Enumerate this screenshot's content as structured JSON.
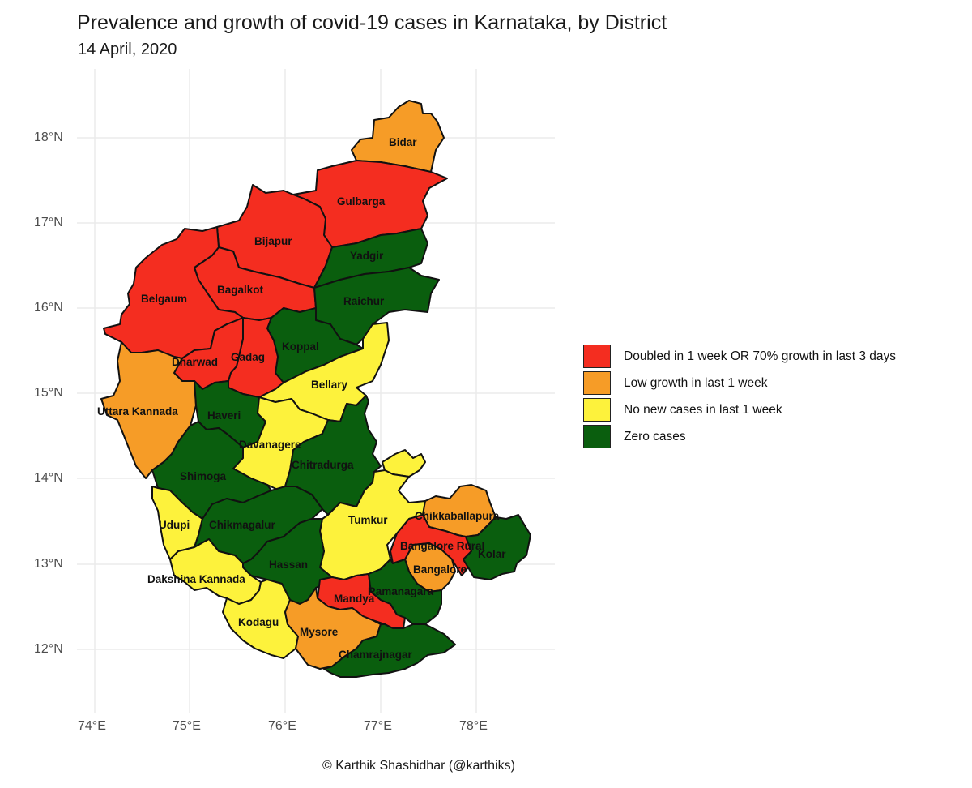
{
  "title": "Prevalence and growth of covid-19 cases in Karnataka, by District",
  "subtitle": "14 April, 2020",
  "caption": "© Karthik Shashidhar (@karthiks)",
  "axes": {
    "y_ticks": [
      "18°N",
      "17°N",
      "16°N",
      "15°N",
      "14°N",
      "13°N",
      "12°N"
    ],
    "x_ticks": [
      "74°E",
      "75°E",
      "76°E",
      "77°E",
      "78°E"
    ]
  },
  "colors": {
    "doubled": "#f42d20",
    "low_growth": "#f69c27",
    "no_new": "#fdf23c",
    "zero": "#0a5e0e",
    "grid": "#ebebeb",
    "border": "#111111"
  },
  "legend": [
    {
      "key": "doubled",
      "label": "Doubled in 1 week OR 70% growth in last 3 days"
    },
    {
      "key": "low_growth",
      "label": "Low growth in last 1 week"
    },
    {
      "key": "no_new",
      "label": "No new cases in last 1 week"
    },
    {
      "key": "zero",
      "label": "Zero cases"
    }
  ],
  "districts": [
    {
      "name": "Bidar",
      "category": "low_growth"
    },
    {
      "name": "Gulbarga",
      "category": "doubled"
    },
    {
      "name": "Bijapur",
      "category": "doubled"
    },
    {
      "name": "Yadgir",
      "category": "zero"
    },
    {
      "name": "Bagalkot",
      "category": "doubled"
    },
    {
      "name": "Belgaum",
      "category": "doubled"
    },
    {
      "name": "Raichur",
      "category": "zero"
    },
    {
      "name": "Koppal",
      "category": "zero"
    },
    {
      "name": "Dharwad",
      "category": "doubled"
    },
    {
      "name": "Gadag",
      "category": "doubled"
    },
    {
      "name": "Bellary",
      "category": "no_new"
    },
    {
      "name": "Uttara Kannada",
      "category": "low_growth"
    },
    {
      "name": "Haveri",
      "category": "zero"
    },
    {
      "name": "Davanagere",
      "category": "no_new"
    },
    {
      "name": "Chitradurga",
      "category": "zero"
    },
    {
      "name": "Shimoga",
      "category": "zero"
    },
    {
      "name": "Udupi",
      "category": "no_new"
    },
    {
      "name": "Chikmagalur",
      "category": "zero"
    },
    {
      "name": "Tumkur",
      "category": "no_new"
    },
    {
      "name": "Chikkaballapura",
      "category": "low_growth"
    },
    {
      "name": "Bangalore Rural",
      "category": "doubled"
    },
    {
      "name": "Kolar",
      "category": "zero"
    },
    {
      "name": "Hassan",
      "category": "zero"
    },
    {
      "name": "Bangalore",
      "category": "low_growth"
    },
    {
      "name": "Dakshina Kannada",
      "category": "no_new"
    },
    {
      "name": "Mandya",
      "category": "doubled"
    },
    {
      "name": "Ramanagara",
      "category": "zero"
    },
    {
      "name": "Kodagu",
      "category": "no_new"
    },
    {
      "name": "Mysore",
      "category": "low_growth"
    },
    {
      "name": "Chamrajnagar",
      "category": "zero"
    }
  ]
}
